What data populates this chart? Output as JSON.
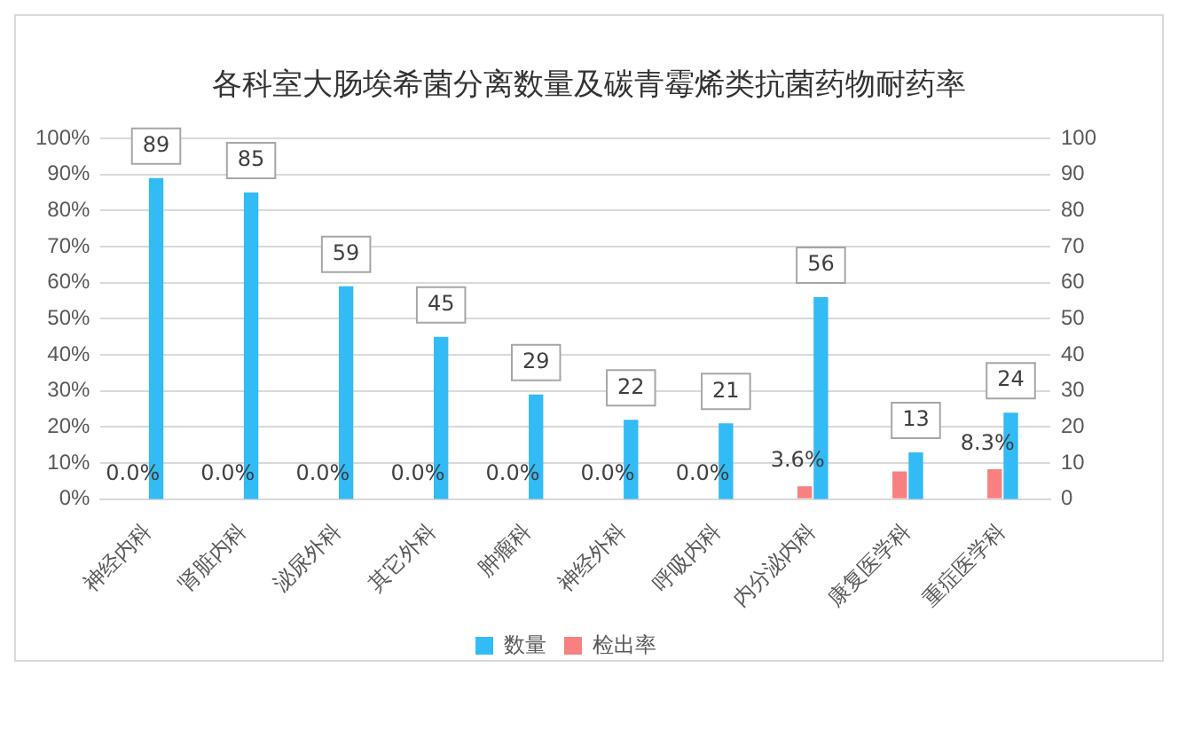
{
  "chart_data": {
    "type": "bar",
    "title": "各科室大肠埃希菌分离数量及碳青霉烯类抗菌药物耐药率",
    "categories": [
      "神经内科",
      "肾脏内科",
      "泌尿外科",
      "其它外科",
      "肿瘤科",
      "神经外科",
      "呼吸内科",
      "内分泌内科",
      "康复医学科",
      "重症医学科"
    ],
    "series": [
      {
        "name": "检出率",
        "color": "#f88080",
        "values": [
          0,
          0,
          0,
          0,
          0,
          0,
          0,
          3.6,
          7.7,
          8.3
        ],
        "value_labels": [
          "0.0%",
          "0.0%",
          "0.0%",
          "0.0%",
          "0.0%",
          "0.0%",
          "0.0%",
          "3.6%",
          null,
          "8.3%"
        ]
      },
      {
        "name": "数量",
        "color": "#33bbf5",
        "axis": "y2",
        "values": [
          89,
          85,
          59,
          45,
          29,
          22,
          21,
          56,
          13,
          24
        ],
        "value_labels": [
          "89",
          "85",
          "59",
          "45",
          "29",
          "22",
          "21",
          "56",
          "13",
          "24"
        ]
      }
    ],
    "ylim": [
      0,
      100
    ],
    "yticks": [
      {
        "value": 0,
        "label": "0%"
      },
      {
        "value": 10,
        "label": "10%"
      },
      {
        "value": 20,
        "label": "20%"
      },
      {
        "value": 30,
        "label": "30%"
      },
      {
        "value": 40,
        "label": "40%"
      },
      {
        "value": 50,
        "label": "50%"
      },
      {
        "value": 60,
        "label": "60%"
      },
      {
        "value": 70,
        "label": "70%"
      },
      {
        "value": 80,
        "label": "80%"
      },
      {
        "value": 90,
        "label": "90%"
      },
      {
        "value": 100,
        "label": "100%"
      }
    ],
    "y2lim": [
      0,
      100
    ],
    "y2ticks": [
      0,
      10,
      20,
      30,
      40,
      50,
      60,
      70,
      80,
      90,
      100
    ],
    "grid": "y",
    "legend": "bottom"
  }
}
